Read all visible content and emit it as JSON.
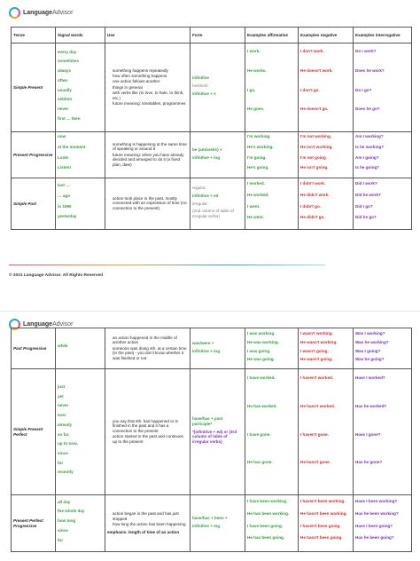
{
  "brand": {
    "name_bold": "Language",
    "name_light": "Advisor"
  },
  "copyright": "© 2021 Language Advisor. All Rights Reserved",
  "headers": [
    "Tense",
    "Signal words",
    "Use",
    "Form",
    "Examples affirmative",
    "Examples negative",
    "Examples interrogative"
  ],
  "page1": [
    {
      "tense": "Simple Present",
      "signals": [
        "every day",
        "sometimes",
        "always",
        "often",
        "usually",
        "seldom",
        "never",
        "first … then"
      ],
      "use": [
        "something happens repeatedly",
        "how often something happens",
        "one action follows another",
        "things in general",
        "with verbs like (to love, to hate, to think, etc.)",
        "future meaning: timetables, programmes"
      ],
      "form": [
        "infinitive",
        "he/she/it:",
        "infinitive + s"
      ],
      "aff": [
        "I work.",
        "He works.",
        "I go.",
        "He goes."
      ],
      "neg": [
        "I don't work.",
        "He doesn't work.",
        "I don't go.",
        "He doesn't go."
      ],
      "int": [
        "Do I work?",
        "Does he work?",
        "Do I go?",
        "Does he go?"
      ]
    },
    {
      "tense": "Present Progressive",
      "signals": [
        "now",
        "at the moment",
        "Look!",
        "Listen!"
      ],
      "use": [
        "something is happening at the same time of speaking or around it",
        "future meaning: when you have already decided and arranged to do it (a fixed plan, date)"
      ],
      "form": [
        "be (am/are/is) +",
        "infinitive + ing"
      ],
      "aff": [
        "I'm working.",
        "He's working.",
        "I'm going.",
        "He's going."
      ],
      "neg": [
        "I'm not working.",
        "He isn't working.",
        "I'm not going.",
        "He isn't going."
      ],
      "int": [
        "Am I working?",
        "Is he working?",
        "Am I going?",
        "Is he going?"
      ]
    },
    {
      "tense": "Simple Past",
      "signals": [
        "last …",
        "… ago",
        "in 1990",
        "yesterday"
      ],
      "use": [
        "action took place in the past, mostly connected with an expression of time (no connection to the present)"
      ],
      "form": [
        "regular:",
        "infinitive + ed",
        "irregular:",
        "(2nd column of table of irregular verbs)"
      ],
      "aff": [
        "I worked.",
        "He worked.",
        "I went.",
        "He went."
      ],
      "neg": [
        "I didn't work.",
        "He didn't work.",
        "I didn't go.",
        "He didn't go."
      ],
      "int": [
        "Did I work?",
        "Did he work?",
        "Did I go?",
        "Did he go?"
      ]
    }
  ],
  "page2": [
    {
      "tense": "Past Progressive",
      "signals": [
        "while"
      ],
      "use": [
        "an action happened in the middle of another action",
        "someone was doing sth. at a certain time (in the past) - you don't know whether it was finished or not"
      ],
      "form": [
        "was/were +",
        "infinitive + ing"
      ],
      "aff": [
        "I was working.",
        "He was working.",
        "I was going.",
        "He was going."
      ],
      "neg": [
        "I wasn't working.",
        "He wasn't working.",
        "I wasn't going.",
        "He wasn't going."
      ],
      "int": [
        "Was I working?",
        "Was he working?",
        "Was I going?",
        "Was he going?"
      ]
    },
    {
      "tense": "Simple Present Perfect",
      "signals": [
        "just",
        "yet",
        "never",
        "ever",
        "already",
        "so far,",
        "up to now,",
        "since",
        "for",
        "recently"
      ],
      "use": [
        "you say that sth. has happened or is finished in the past and it has a connection to the present",
        "action started in the past and continues up to the present"
      ],
      "form": [
        "have/has + past participle*",
        "*(infinitive + ed) or (3rd column of table of irregular verbs)"
      ],
      "aff": [
        "I have worked.",
        "He has worked.",
        "I have gone.",
        "He has gone."
      ],
      "neg": [
        "I haven't worked.",
        "He hasn't worked.",
        "I haven't gone.",
        "He hasn't gone."
      ],
      "int": [
        "Have I worked?",
        "Has he worked?",
        "Have I gone?",
        "Has he gone?"
      ]
    },
    {
      "tense": "Present Perfect Progressive",
      "signals": [
        "all day",
        "the whole day",
        "how long",
        "since",
        "for"
      ],
      "use": [
        "action began in the past and has just stopped",
        "how long the action has been happening"
      ],
      "use_note": "emphasis: length of time of an action",
      "form": [
        "have/has + been +",
        "infinitive + ing"
      ],
      "aff": [
        "I have been working.",
        "He has been working.",
        "I have been going.",
        "He has been going."
      ],
      "neg": [
        "I haven't been working.",
        "He hasn't been working.",
        "I haven't been going.",
        "He hasn't been going."
      ],
      "int": [
        "Have I been working?",
        "Has he been working?",
        "Have I been going?",
        "Has he been going?"
      ]
    }
  ]
}
